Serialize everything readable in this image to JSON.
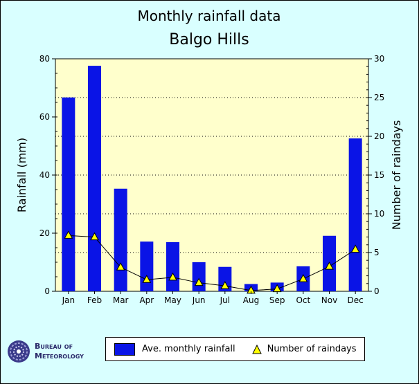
{
  "chart_data": {
    "type": "bar",
    "title": "Monthly rainfall data",
    "subtitle": "Balgo Hills",
    "categories": [
      "Jan",
      "Feb",
      "Mar",
      "Apr",
      "May",
      "Jun",
      "Jul",
      "Aug",
      "Sep",
      "Oct",
      "Nov",
      "Dec"
    ],
    "series": [
      {
        "name": "Ave. monthly rainfall",
        "axis": "left",
        "mark": "bar",
        "color": "#0a14e6",
        "values": [
          66.7,
          77.6,
          35.3,
          17.1,
          16.9,
          10.0,
          8.4,
          2.5,
          3.0,
          8.6,
          19.1,
          52.6
        ]
      },
      {
        "name": "Number of raindays",
        "axis": "right",
        "mark": "line-triangle",
        "color": "#ffff00",
        "values": [
          7.2,
          7.0,
          3.1,
          1.5,
          1.8,
          1.1,
          0.7,
          0.1,
          0.3,
          1.6,
          3.2,
          5.4
        ]
      }
    ],
    "ylabel": "Rainfall (mm)",
    "ylim": [
      0,
      80
    ],
    "yticks": [
      "0",
      "20",
      "40",
      "60",
      "80"
    ],
    "y2label": "Number of raindays",
    "y2lim": [
      0,
      30
    ],
    "y2ticks": [
      "0",
      "5",
      "10",
      "15",
      "20",
      "25",
      "30"
    ],
    "grid": "horizontal dotted",
    "legend_position": "bottom",
    "colors": {
      "plot_background": "#ffffcc",
      "page_background": "#d9ffff"
    }
  },
  "logo": {
    "line1": "Bureau of",
    "line2": "Meteorology"
  }
}
